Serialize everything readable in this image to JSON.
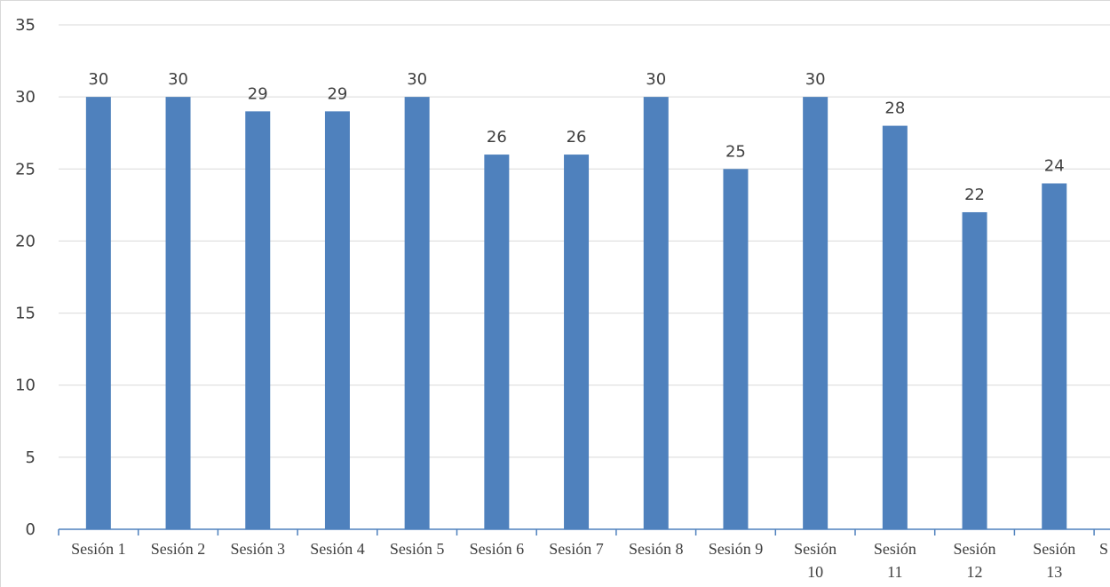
{
  "chart_data": {
    "type": "bar",
    "title": "",
    "xlabel": "",
    "ylabel": "",
    "ylim": [
      0,
      35
    ],
    "yticks": [
      0,
      5,
      10,
      15,
      20,
      25,
      30,
      35
    ],
    "grid": true,
    "legend": "none",
    "bar_color": "#4f81bd",
    "categories": [
      "Sesión 1",
      "Sesión 2",
      "Sesión 3",
      "Sesión 4",
      "Sesión 5",
      "Sesión 6",
      "Sesión 7",
      "Sesión 8",
      "Sesión 9",
      "Sesión 10",
      "Sesión 11",
      "Sesión 12",
      "Sesión 13",
      "S"
    ],
    "values": [
      30,
      30,
      29,
      29,
      30,
      26,
      26,
      30,
      25,
      30,
      28,
      22,
      24,
      null
    ],
    "data_labels": [
      "30",
      "30",
      "29",
      "29",
      "30",
      "26",
      "26",
      "30",
      "25",
      "30",
      "28",
      "22",
      "24",
      ""
    ]
  }
}
